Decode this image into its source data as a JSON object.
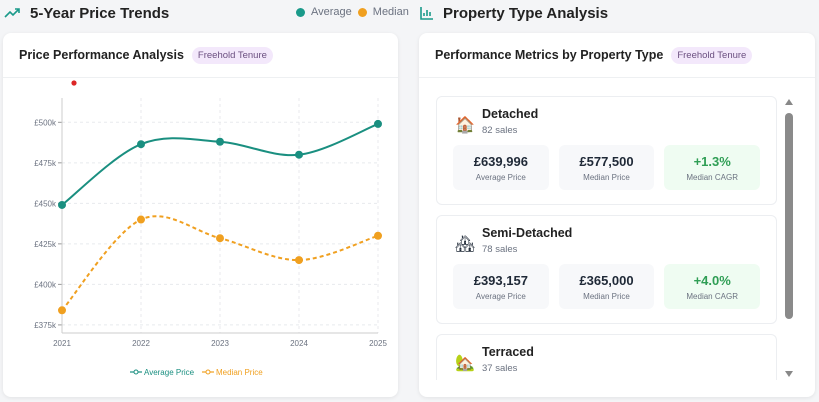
{
  "left": {
    "title": "5-Year Price Trends",
    "legend": [
      {
        "label": "Average",
        "color": "#1a9a8a"
      },
      {
        "label": "Median",
        "color": "#f0a020"
      }
    ],
    "card_title": "Price Performance Analysis",
    "badge": "Freehold Tenure"
  },
  "right": {
    "title": "Property Type Analysis",
    "card_title": "Performance Metrics by Property Type",
    "badge": "Freehold Tenure",
    "types": [
      {
        "name": "Detached",
        "sales": "82 sales",
        "icon": "house-icon",
        "metrics": [
          {
            "value": "£639,996",
            "label": "Average Price"
          },
          {
            "value": "£577,500",
            "label": "Median Price"
          },
          {
            "value": "+1.3%",
            "label": "Median CAGR"
          }
        ]
      },
      {
        "name": "Semi-Detached",
        "sales": "78 sales",
        "icon": "houses-icon",
        "metrics": [
          {
            "value": "£393,157",
            "label": "Average Price"
          },
          {
            "value": "£365,000",
            "label": "Median Price"
          },
          {
            "value": "+4.0%",
            "label": "Median CAGR"
          }
        ]
      },
      {
        "name": "Terraced",
        "sales": "37 sales",
        "icon": "house-garden-icon",
        "metrics": []
      }
    ]
  },
  "chart_data": {
    "type": "line",
    "categories": [
      "2021",
      "2022",
      "2023",
      "2024",
      "2025"
    ],
    "series": [
      {
        "name": "Average Price",
        "values": [
          449,
          486.5,
          488,
          480,
          499
        ],
        "color": "#1a8f80",
        "dashed": false
      },
      {
        "name": "Median Price",
        "values": [
          384,
          440,
          428.5,
          415,
          430
        ],
        "color": "#f0a020",
        "dashed": true
      }
    ],
    "yticks": [
      375,
      400,
      425,
      450,
      475,
      500
    ],
    "ytick_labels": [
      "£375k",
      "£400k",
      "£425k",
      "£450k",
      "£475k",
      "£500k"
    ],
    "ylim": [
      370,
      515
    ],
    "yunit": "£ thousands",
    "grid": true,
    "legend": "bottom"
  }
}
